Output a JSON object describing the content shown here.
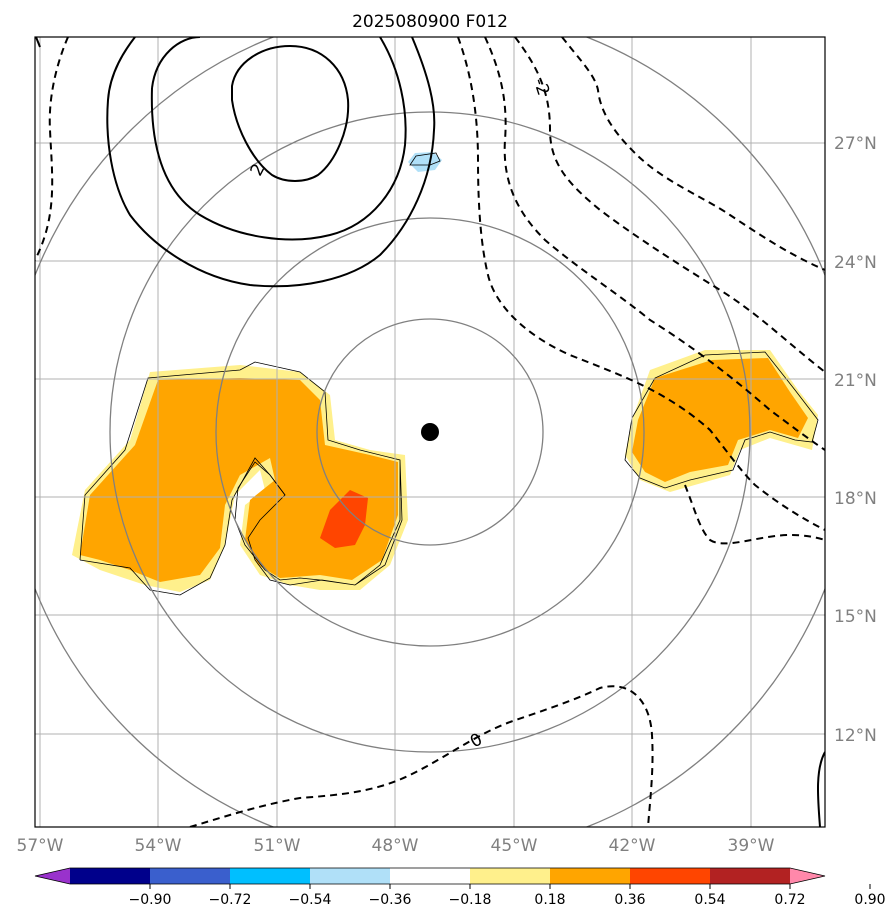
{
  "title": "2025080900 F012",
  "map": {
    "lat_ticks": [
      "27°N",
      "24°N",
      "21°N",
      "18°N",
      "15°N",
      "12°N"
    ],
    "lon_ticks": [
      "57°W",
      "54°W",
      "51°W",
      "48°W",
      "45°W",
      "42°W",
      "39°W"
    ],
    "center_marker": "storm-center",
    "contour_labels": [
      "2",
      "-2",
      "0"
    ],
    "range_rings": 4
  },
  "colorbar": {
    "ticks": [
      "−0.90",
      "−0.72",
      "−0.54",
      "−0.36",
      "−0.18",
      "0.18",
      "0.36",
      "0.54",
      "0.72",
      "0.90"
    ],
    "colors": [
      "#9932cc",
      "#00008b",
      "#3a5fcd",
      "#00bfff",
      "#b0e0f8",
      "#ffffff",
      "#fff08c",
      "#ffa500",
      "#ff4500",
      "#b22222",
      "#ff88aa"
    ],
    "extend": "both"
  },
  "colors": {
    "orange": "#ffa500",
    "light_yellow": "#fff08c",
    "red_orange": "#ff4500",
    "light_blue": "#b0e0f8",
    "grid": "#b0b0b0",
    "ring": "#808080"
  }
}
